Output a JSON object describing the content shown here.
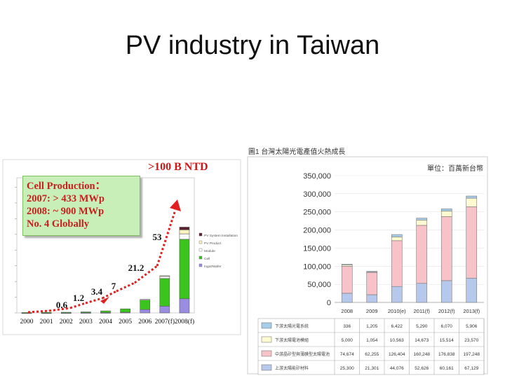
{
  "slide": {
    "title": "PV industry in Taiwan"
  },
  "left_chart": {
    "cell_box_lines": [
      "Cell Production：",
      "2007: > 433 MWp",
      "2008: ~ 900 MWp",
      "No. 4 Globally"
    ],
    "target_note": ">100 B NTD",
    "legend": [
      "PV System Installation",
      "PV Product",
      "Module",
      "Cell",
      "Ingot/Wafer"
    ],
    "colors": {
      "system": "#5a2030",
      "product": "#fbf3c0",
      "module": "#ffffff",
      "cell": "#3cc41e",
      "ingot": "#9a8ce0",
      "arrow": "#e02020",
      "label": "#111111"
    }
  },
  "right_chart": {
    "caption": "圖1  台灣太陽光電產值火熱成長",
    "unit": "單位：百萬新台幣",
    "legend_colors": {
      "system": "#a6cdea",
      "module": "#fffbd0",
      "cell": "#f7c3c8",
      "material": "#b6c8ec"
    }
  },
  "chart_data": [
    {
      "type": "bar",
      "title": "",
      "categories": [
        "2000",
        "2001",
        "2002",
        "2003",
        "2004",
        "2005",
        "2006",
        "2007(f)",
        "2008(f)"
      ],
      "annotations": [
        "0.6",
        "1.2",
        "3.4",
        "7",
        "21.2",
        "53"
      ],
      "series": [
        {
          "name": "PV System Installation",
          "values": [
            0,
            0,
            0,
            0,
            0,
            0,
            0,
            0,
            4
          ]
        },
        {
          "name": "PV Product",
          "values": [
            0,
            0,
            0,
            0,
            0,
            0,
            0,
            1,
            6
          ]
        },
        {
          "name": "Module",
          "values": [
            0,
            0,
            0,
            0,
            0,
            0,
            1,
            3,
            8
          ]
        },
        {
          "name": "Cell",
          "values": [
            0.5,
            0.6,
            0.8,
            1.2,
            2.5,
            5,
            14,
            41,
            88
          ]
        },
        {
          "name": "Ingot/Wafer",
          "values": [
            0.1,
            0.1,
            0.2,
            0.3,
            0.5,
            1,
            5,
            10,
            21
          ]
        }
      ],
      "ylim": [
        0,
        200
      ]
    },
    {
      "type": "bar",
      "title": "",
      "categories": [
        "2008",
        "2009",
        "2010(e)",
        "2011(f)",
        "2012(f)",
        "2013(f)"
      ],
      "yticks": [
        "350,000",
        "300,000",
        "250,000",
        "200,000",
        "150,000",
        "100,000",
        "50,000",
        "0"
      ],
      "ylim": [
        0,
        350000
      ],
      "series": [
        {
          "name": "下游太陽光電系統",
          "values": [
            336,
            1205,
            6422,
            5290,
            6070,
            5906
          ]
        },
        {
          "name": "下游太陽電池模組",
          "values": [
            5000,
            1054,
            10563,
            14673,
            15514,
            23570
          ]
        },
        {
          "name": "中游晶矽型與薄膜型太陽電池",
          "values": [
            74674,
            62255,
            126404,
            160248,
            176838,
            197248
          ]
        },
        {
          "name": "上游太陽能矽材料",
          "values": [
            25300,
            21301,
            44076,
            52626,
            60161,
            67129
          ]
        }
      ],
      "table_rows": [
        {
          "name": "下游太陽光電系統",
          "values": [
            "336",
            "1,205",
            "6,422",
            "5,290",
            "6,070",
            "5,906"
          ]
        },
        {
          "name": "下游太陽電池模組",
          "values": [
            "5,000",
            "1,054",
            "10,563",
            "14,673",
            "15,514",
            "23,570"
          ]
        },
        {
          "name": "中游晶矽型與薄膜型太陽電池",
          "values": [
            "74,674",
            "62,255",
            "126,404",
            "160,248",
            "176,838",
            "197,248"
          ]
        },
        {
          "name": "上游太陽能矽材料",
          "values": [
            "25,300",
            "21,301",
            "44,076",
            "52,626",
            "60,161",
            "67,129"
          ]
        }
      ]
    }
  ]
}
